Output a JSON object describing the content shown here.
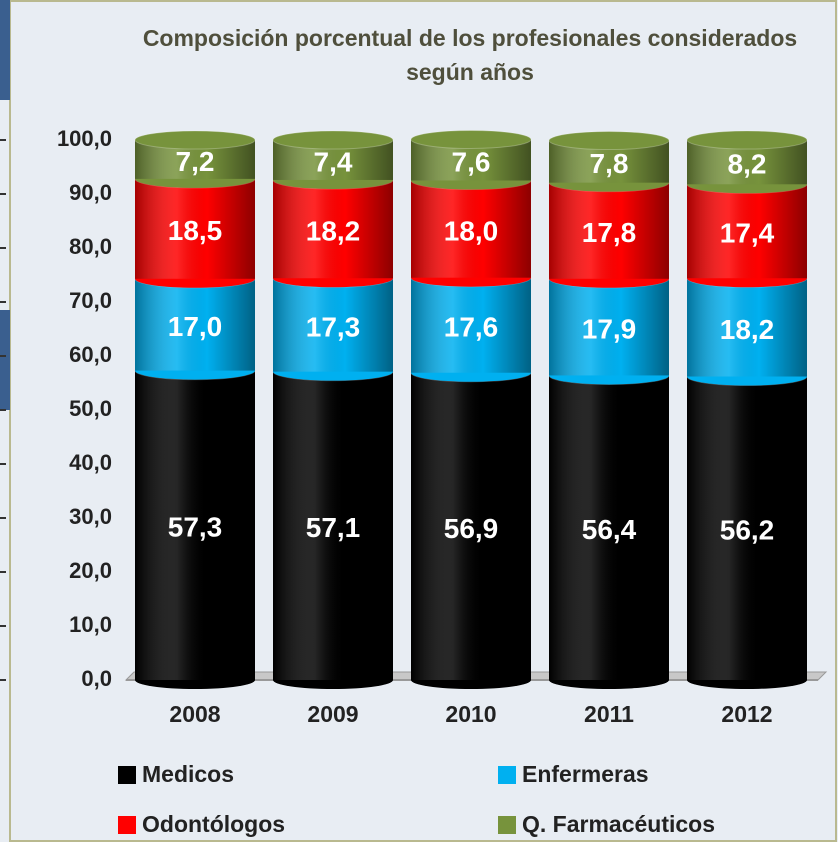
{
  "chart_data": {
    "type": "stacked_bar",
    "title": "Composición porcentual de los profesionales considerados según años",
    "categories": [
      "2008",
      "2009",
      "2010",
      "2011",
      "2012"
    ],
    "series": [
      {
        "name": "Medicos",
        "color": "#000000",
        "values": [
          57.3,
          57.1,
          56.9,
          56.4,
          56.2
        ],
        "value_labels": [
          "57,3",
          "57,1",
          "56,9",
          "56,4",
          "56,2"
        ]
      },
      {
        "name": "Enfermeras",
        "color": "#00b0f0",
        "values": [
          17.0,
          17.3,
          17.6,
          17.9,
          18.2
        ],
        "value_labels": [
          "17,0",
          "17,3",
          "17,6",
          "17,9",
          "18,2"
        ]
      },
      {
        "name": "Odontólogos",
        "color": "#ff0000",
        "values": [
          18.5,
          18.2,
          18.0,
          17.8,
          17.4
        ],
        "value_labels": [
          "18,5",
          "18,2",
          "18,0",
          "17,8",
          "17,4"
        ]
      },
      {
        "name": "Q. Farmacéuticos",
        "color": "#77933c",
        "values": [
          7.2,
          7.4,
          7.6,
          7.8,
          8.2
        ],
        "value_labels": [
          "7,2",
          "7,4",
          "7,6",
          "7,8",
          "8,2"
        ]
      }
    ],
    "ylim": [
      0,
      100
    ],
    "yticks": [
      {
        "value": 0,
        "label": "0,0"
      },
      {
        "value": 10,
        "label": "10,0"
      },
      {
        "value": 20,
        "label": "20,0"
      },
      {
        "value": 30,
        "label": "30,0"
      },
      {
        "value": 40,
        "label": "40,0"
      },
      {
        "value": 50,
        "label": "50,0"
      },
      {
        "value": 60,
        "label": "60,0"
      },
      {
        "value": 70,
        "label": "70,0"
      },
      {
        "value": 80,
        "label": "80,0"
      },
      {
        "value": 90,
        "label": "90,0"
      },
      {
        "value": 100,
        "label": "100,0"
      }
    ],
    "legend": "bottom"
  }
}
